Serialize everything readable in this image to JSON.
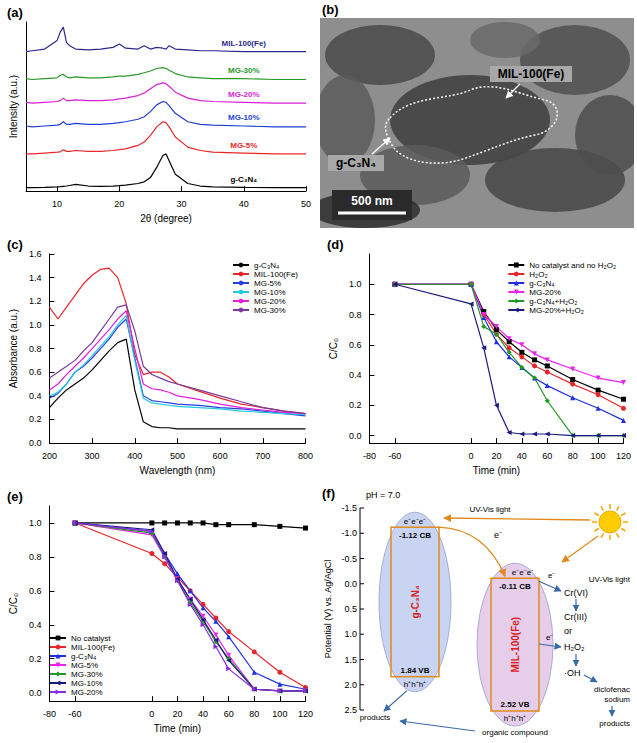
{
  "chart_data": [
    {
      "panel": "(a)",
      "type": "line",
      "x_label": "2θ (degree)",
      "y_label": "Intensity (a.u.)",
      "xlim": [
        5,
        50
      ],
      "xticks": [
        10,
        20,
        30,
        40,
        50
      ],
      "ylim": [
        0,
        100
      ],
      "tick_labels": "x",
      "grid": false,
      "x": [
        5,
        6,
        8,
        10,
        10.5,
        11,
        11.5,
        12,
        13,
        15,
        17,
        19,
        20,
        21,
        23,
        24,
        25,
        26,
        27,
        27.5,
        28,
        29,
        31,
        33,
        35,
        40,
        45,
        50
      ],
      "series": [
        {
          "name": "g-C₃N₄",
          "color": "#000000",
          "values": [
            2,
            2,
            2.2,
            2.5,
            2.6,
            2.8,
            3,
            3.3,
            4,
            3,
            2.8,
            3,
            3.2,
            3.5,
            4.5,
            5.5,
            8,
            14,
            21,
            22,
            18,
            10,
            4.5,
            3,
            2.5,
            2.2,
            2,
            2
          ]
        },
        {
          "name": "MG-5%",
          "color": "#e8262a",
          "values": [
            22,
            22,
            22.5,
            23,
            23.2,
            24.5,
            23.5,
            23.5,
            24,
            23.5,
            23.5,
            24,
            24.5,
            25,
            27,
            29,
            33,
            38,
            41,
            40.5,
            38,
            32,
            26,
            24,
            23,
            22.5,
            22,
            22
          ]
        },
        {
          "name": "MG-10%",
          "color": "#1f3fd6",
          "values": [
            38.5,
            38,
            38.5,
            39,
            39.5,
            41,
            39.5,
            39.5,
            40,
            39.5,
            39.5,
            40,
            40.5,
            41,
            42.5,
            44,
            47,
            51,
            53,
            52.5,
            50.5,
            46,
            41,
            39.5,
            39,
            38.5,
            38,
            38
          ]
        },
        {
          "name": "MG-20%",
          "color": "#d81ed8",
          "values": [
            52.5,
            52,
            52.5,
            53,
            53.5,
            55,
            53.5,
            53.5,
            54,
            53.5,
            53.5,
            54,
            54.5,
            55,
            56.5,
            58,
            60.5,
            63,
            64,
            63.5,
            62,
            58.5,
            55,
            53.5,
            53,
            52.5,
            52,
            52
          ]
        },
        {
          "name": "MG-30%",
          "color": "#2a9a2a",
          "values": [
            66.5,
            66,
            66.5,
            67,
            68.5,
            69,
            67.5,
            67,
            67.5,
            67,
            67,
            67.5,
            68,
            68,
            69,
            70,
            71,
            72.5,
            73,
            72.5,
            71.5,
            69.5,
            67.5,
            67,
            66.5,
            66.5,
            66,
            66
          ]
        },
        {
          "name": "MIL-100(Fe)",
          "color": "#2a2a8a",
          "values": [
            82.5,
            83,
            84,
            89,
            94,
            97,
            88,
            86,
            84,
            83.5,
            84,
            85,
            87,
            84.5,
            84,
            86,
            84,
            85,
            84.5,
            84,
            86,
            84,
            83.5,
            83,
            83,
            82.5,
            82.5,
            82.5
          ]
        }
      ]
    },
    {
      "panel": "(c)",
      "type": "line",
      "x_label": "Wavelength (nm)",
      "y_label": "Absorbance (a.u.)",
      "xlim": [
        200,
        800
      ],
      "xticks": [
        200,
        300,
        400,
        500,
        600,
        700,
        800
      ],
      "ylim": [
        0,
        1.6
      ],
      "yticks": [
        {
          "value": 0,
          "label": "0.0"
        },
        0.2,
        0.4,
        0.6,
        0.8,
        {
          "value": 1,
          "label": "1.0"
        },
        1.2,
        1.4,
        1.6
      ],
      "grid": false,
      "legend": "top-right",
      "x": [
        200,
        220,
        240,
        260,
        280,
        300,
        320,
        340,
        360,
        380,
        400,
        420,
        440,
        460,
        480,
        500,
        550,
        600,
        650,
        700,
        750,
        800
      ],
      "series": [
        {
          "name": "g-C₃N₄",
          "color": "#000000",
          "values": [
            0.3,
            0.38,
            0.45,
            0.5,
            0.55,
            0.62,
            0.7,
            0.78,
            0.85,
            0.88,
            0.45,
            0.18,
            0.14,
            0.13,
            0.13,
            0.12,
            0.12,
            0.12,
            0.12,
            0.12,
            0.12,
            0.12
          ]
        },
        {
          "name": "MIL-100(Fe)",
          "color": "#e8262a",
          "values": [
            1.15,
            1.05,
            1.15,
            1.25,
            1.35,
            1.42,
            1.47,
            1.48,
            1.4,
            1.18,
            0.75,
            0.58,
            0.6,
            0.6,
            0.56,
            0.5,
            0.44,
            0.38,
            0.33,
            0.3,
            0.27,
            0.25
          ]
        },
        {
          "name": "MG-5%",
          "color": "#2b3fe0",
          "values": [
            0.38,
            0.42,
            0.5,
            0.6,
            0.65,
            0.72,
            0.8,
            0.88,
            0.98,
            1.05,
            0.72,
            0.4,
            0.36,
            0.35,
            0.34,
            0.33,
            0.32,
            0.3,
            0.29,
            0.27,
            0.25,
            0.23
          ]
        },
        {
          "name": "MG-10%",
          "color": "#22c8e0",
          "values": [
            0.4,
            0.43,
            0.5,
            0.6,
            0.66,
            0.74,
            0.82,
            0.9,
            1,
            1.08,
            0.7,
            0.38,
            0.34,
            0.33,
            0.32,
            0.31,
            0.3,
            0.29,
            0.27,
            0.26,
            0.25,
            0.24
          ]
        },
        {
          "name": "MG-20%",
          "color": "#e020e0",
          "values": [
            0.45,
            0.5,
            0.58,
            0.65,
            0.72,
            0.8,
            0.88,
            0.96,
            1.05,
            1.12,
            0.8,
            0.5,
            0.46,
            0.45,
            0.43,
            0.4,
            0.37,
            0.33,
            0.3,
            0.28,
            0.26,
            0.25
          ]
        },
        {
          "name": "MG-30%",
          "color": "#7a3a9a",
          "values": [
            0.55,
            0.6,
            0.65,
            0.7,
            0.78,
            0.85,
            0.95,
            1.05,
            1.15,
            1.17,
            0.95,
            0.65,
            0.58,
            0.55,
            0.52,
            0.5,
            0.45,
            0.4,
            0.35,
            0.3,
            0.27,
            0.25
          ]
        }
      ]
    },
    {
      "panel": "(d)",
      "type": "line",
      "x_label": "Time (min)",
      "y_label": "C/C₀",
      "xlim": [
        -80,
        120
      ],
      "xticks": [
        -80,
        -60,
        0,
        20,
        40,
        60,
        80,
        100,
        120
      ],
      "ylim": [
        -0.05,
        1.2
      ],
      "yticks": [
        {
          "value": 0,
          "label": "0.0"
        },
        0.2,
        0.4,
        0.6,
        0.8,
        {
          "value": 1,
          "label": "1.0"
        }
      ],
      "grid": false,
      "legend": "top-right",
      "x": [
        -60,
        0,
        10,
        20,
        30,
        40,
        50,
        60,
        80,
        100,
        120
      ],
      "series": [
        {
          "name": "No catalyst and no H₂O₂",
          "color": "#000000",
          "marker": "square",
          "values": [
            1,
            1,
            0.82,
            0.7,
            0.62,
            0.55,
            0.5,
            0.46,
            0.37,
            0.3,
            0.24
          ]
        },
        {
          "name": "H₂O₂",
          "color": "#e8262a",
          "marker": "circle",
          "values": [
            1,
            1,
            0.8,
            0.67,
            0.58,
            0.52,
            0.46,
            0.42,
            0.34,
            0.27,
            0.18
          ]
        },
        {
          "name": "g-C₃N₄",
          "color": "#2030e0",
          "marker": "triangle",
          "values": [
            1,
            1,
            0.78,
            0.62,
            0.52,
            0.45,
            0.38,
            0.33,
            0.25,
            0.18,
            0.1
          ]
        },
        {
          "name": "MG-20%",
          "color": "#ee22ee",
          "marker": "triangle_down",
          "values": [
            1,
            1,
            0.8,
            0.72,
            0.64,
            0.6,
            0.54,
            0.5,
            0.44,
            0.38,
            0.35
          ]
        },
        {
          "name": "g-C₃N₄+H₂O₂",
          "color": "#229922",
          "marker": "diamond",
          "values": [
            1,
            1,
            0.72,
            0.67,
            0.55,
            0.45,
            0.38,
            0.23,
            0,
            0,
            0
          ]
        },
        {
          "name": "MG-20%+H₂O₂",
          "color": "#1a1a80",
          "marker": "triangle_left",
          "values": [
            1,
            0.87,
            0.58,
            0.2,
            0.02,
            0.01,
            0.01,
            0.01,
            0,
            0,
            0
          ]
        }
      ]
    },
    {
      "panel": "(e)",
      "type": "line",
      "x_label": "Time (min)",
      "y_label": "C/C₀",
      "xlim": [
        -80,
        120
      ],
      "xticks": [
        -80,
        -60,
        0,
        20,
        40,
        60,
        80,
        100,
        120
      ],
      "ylim": [
        -0.05,
        1.1
      ],
      "yticks": [
        {
          "value": 0,
          "label": "0.0"
        },
        0.2,
        0.4,
        0.6,
        0.8,
        {
          "value": 1,
          "label": "1.0"
        }
      ],
      "grid": false,
      "legend": "bottom-left",
      "x": [
        -60,
        0,
        10,
        20,
        30,
        40,
        50,
        60,
        80,
        100,
        120
      ],
      "series": [
        {
          "name": "No catalyst",
          "color": "#000000",
          "marker": "square",
          "values": [
            1,
            1,
            1,
            1,
            1,
            1,
            0.99,
            0.99,
            0.99,
            0.98,
            0.97
          ]
        },
        {
          "name": "MIL-100(Fe)",
          "color": "#e8262a",
          "marker": "circle",
          "values": [
            1,
            0.82,
            0.76,
            0.68,
            0.6,
            0.52,
            0.44,
            0.36,
            0.24,
            0.12,
            0.03
          ]
        },
        {
          "name": "g-C₃N₄",
          "color": "#2030e0",
          "marker": "triangle",
          "values": [
            1,
            0.95,
            0.82,
            0.7,
            0.6,
            0.5,
            0.42,
            0.33,
            0.12,
            0.05,
            0.02
          ]
        },
        {
          "name": "MG-5%",
          "color": "#ee22ee",
          "marker": "triangle_down",
          "values": [
            1,
            0.93,
            0.8,
            0.67,
            0.55,
            0.45,
            0.34,
            0.22,
            0.02,
            0.01,
            0.01
          ]
        },
        {
          "name": "MG-30%",
          "color": "#229922",
          "marker": "diamond",
          "values": [
            1,
            0.94,
            0.8,
            0.66,
            0.53,
            0.42,
            0.3,
            0.2,
            0.02,
            0.01,
            0.01
          ]
        },
        {
          "name": "MG-10%",
          "color": "#1a1a80",
          "marker": "triangle_left",
          "values": [
            1,
            0.96,
            0.82,
            0.67,
            0.55,
            0.43,
            0.31,
            0.19,
            0.02,
            0.01,
            0.01
          ]
        },
        {
          "name": "MG-20%",
          "color": "#8a2be2",
          "marker": "triangle_right",
          "values": [
            1,
            0.95,
            0.8,
            0.66,
            0.52,
            0.4,
            0.27,
            0.14,
            0.02,
            0.01,
            0.01
          ]
        }
      ]
    }
  ],
  "tem_image": {
    "panel": "(b)",
    "labels": [
      "MIL-100(Fe)",
      "g-C₃N₄"
    ],
    "scale_bar": "500 nm"
  },
  "band_diagram": {
    "panel": "(f)",
    "condition": "pH = 7.0",
    "axis_label": "Potential (V) vs. Ag/AgCl",
    "ylim": [
      -1.5,
      2.5
    ],
    "yticks": [
      -1.5,
      {
        "value": -1,
        "label": "-1.0"
      },
      -0.5,
      {
        "value": 0,
        "label": "0.0"
      },
      0.5,
      {
        "value": 1,
        "label": "1.0"
      },
      1.5,
      {
        "value": 2,
        "label": "2.0"
      },
      2.5
    ],
    "semiconductors": [
      {
        "name": "g-C₃N₄",
        "cb": -1.12,
        "cb_label": "-1.12 CB",
        "vb": 1.84,
        "vb_label": "1.84 VB"
      },
      {
        "name": "MIL-100(Fe)",
        "cb": -0.11,
        "cb_label": "-0.11 CB",
        "vb": 2.52,
        "vb_label": "2.52 VB"
      }
    ],
    "electrons": "e⁻e⁻e⁻",
    "holes": "h⁺h⁺h⁺",
    "electron": "e⁻",
    "light": "UV-Vis light",
    "pollutant": "Cr(VI)",
    "reduced": "Cr(III)",
    "or": "or",
    "oxidant": "H₂O₂",
    "radical": "·OH",
    "target": "diclofenac sodium",
    "product": "products",
    "organic": "organic compound"
  }
}
